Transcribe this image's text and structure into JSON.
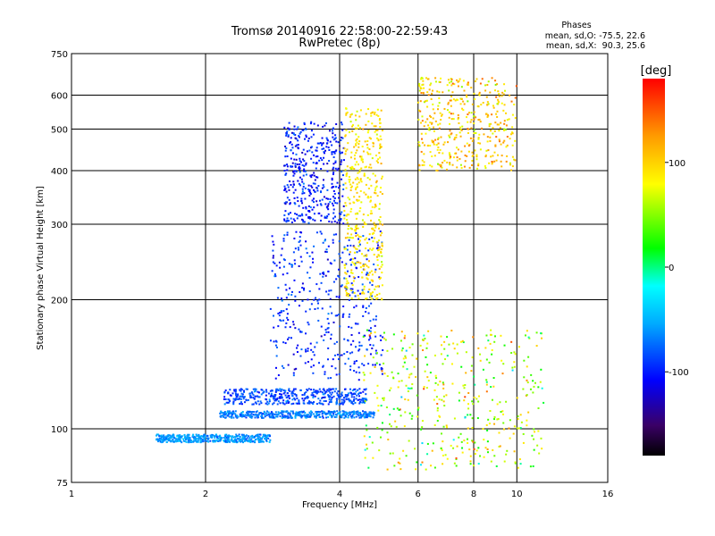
{
  "chart_data": {
    "type": "scatter",
    "title": "Tromsø 20140916 22:58:00-22:59:43",
    "subtitle": "RwPretec (8p)",
    "xlabel": "Frequency [MHz]",
    "ylabel": "Stationary phase Virtual Height [km]",
    "x_scale": "log",
    "y_scale": "log",
    "xlim": [
      1,
      16
    ],
    "ylim": [
      75,
      750
    ],
    "x_ticks": [
      1,
      2,
      4,
      6,
      8,
      10,
      16
    ],
    "y_ticks": [
      75,
      100,
      200,
      300,
      400,
      500,
      600,
      750
    ],
    "grid": true,
    "legend": {
      "heading": "Phases",
      "line1": "mean, sd,O: -75.5, 22.6",
      "line2": "mean, sd,X:  90.3, 25.6",
      "placement": "top-right"
    },
    "colorbar": {
      "label": "[deg]",
      "range": [
        -180,
        180
      ],
      "ticks": [
        100,
        0,
        -100
      ],
      "colormap": "rainbow"
    },
    "traces": [
      {
        "x_range": [
          1.55,
          2.8
        ],
        "y_range": [
          93,
          97
        ],
        "phase_mean": -60,
        "phase_sd": 20
      },
      {
        "x_range": [
          2.15,
          4.8
        ],
        "y_range": [
          106,
          110
        ],
        "phase_mean": -70,
        "phase_sd": 20
      },
      {
        "x_range": [
          2.2,
          4.6
        ],
        "y_range": [
          114,
          124
        ],
        "phase_mean": -85,
        "phase_sd": 22
      },
      {
        "x_range": [
          2.8,
          5.0
        ],
        "y_range": [
          130,
          290
        ],
        "phase_mean": -95,
        "phase_sd": 25
      },
      {
        "x_range": [
          3.0,
          4.1
        ],
        "y_range": [
          300,
          520
        ],
        "phase_mean": -100,
        "phase_sd": 25
      },
      {
        "x_range": [
          4.1,
          5.0
        ],
        "y_range": [
          200,
          560
        ],
        "phase_mean": 90,
        "phase_sd": 25
      },
      {
        "x_range": [
          4.5,
          11.5
        ],
        "y_range": [
          80,
          170
        ],
        "phase_mean": 60,
        "phase_sd": 70
      },
      {
        "x_range": [
          6.0,
          10.0
        ],
        "y_range": [
          400,
          660
        ],
        "phase_mean": 100,
        "phase_sd": 40
      }
    ]
  }
}
